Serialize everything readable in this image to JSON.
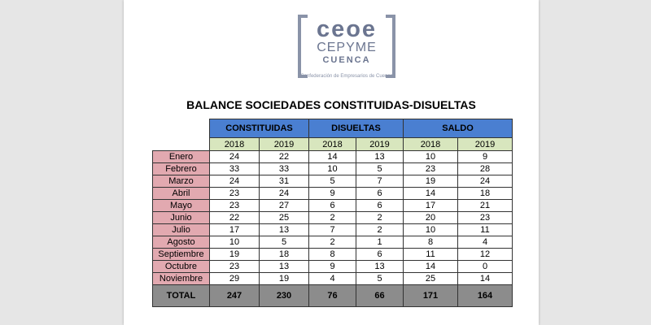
{
  "logo": {
    "main": "ceoe",
    "sub": "CEPYME",
    "city": "CUENCA",
    "tagline": "Confederación de Empresarios de Cuenca"
  },
  "title": "BALANCE SOCIEDADES CONSTITUIDAS-DISUELTAS",
  "table": {
    "groups": [
      "CONSTITUIDAS",
      "DISUELTAS",
      "SALDO"
    ],
    "years": [
      "2018",
      "2019",
      "2018",
      "2019",
      "2018",
      "2019"
    ],
    "rows": [
      {
        "month": "Enero",
        "values": [
          "24",
          "22",
          "14",
          "13",
          "10",
          "9"
        ]
      },
      {
        "month": "Febrero",
        "values": [
          "33",
          "33",
          "10",
          "5",
          "23",
          "28"
        ]
      },
      {
        "month": "Marzo",
        "values": [
          "24",
          "31",
          "5",
          "7",
          "19",
          "24"
        ]
      },
      {
        "month": "Abril",
        "values": [
          "23",
          "24",
          "9",
          "6",
          "14",
          "18"
        ]
      },
      {
        "month": "Mayo",
        "values": [
          "23",
          "27",
          "6",
          "6",
          "17",
          "21"
        ]
      },
      {
        "month": "Junio",
        "values": [
          "22",
          "25",
          "2",
          "2",
          "20",
          "23"
        ]
      },
      {
        "month": "Julio",
        "values": [
          "17",
          "13",
          "7",
          "2",
          "10",
          "11"
        ]
      },
      {
        "month": "Agosto",
        "values": [
          "10",
          "5",
          "2",
          "1",
          "8",
          "4"
        ]
      },
      {
        "month": "Septiembre",
        "values": [
          "19",
          "18",
          "8",
          "6",
          "11",
          "12"
        ]
      },
      {
        "month": "Octubre",
        "values": [
          "23",
          "13",
          "9",
          "13",
          "14",
          "0"
        ]
      },
      {
        "month": "Noviembre",
        "values": [
          "29",
          "19",
          "4",
          "5",
          "25",
          "14"
        ]
      }
    ],
    "total": {
      "label": "TOTAL",
      "values": [
        "247",
        "230",
        "76",
        "66",
        "171",
        "164"
      ]
    }
  },
  "colors": {
    "group_header": "#4a7fd1",
    "year_header": "#d8e6be",
    "month_cell": "#e2a9b0",
    "total_row": "#8c8c8c"
  }
}
